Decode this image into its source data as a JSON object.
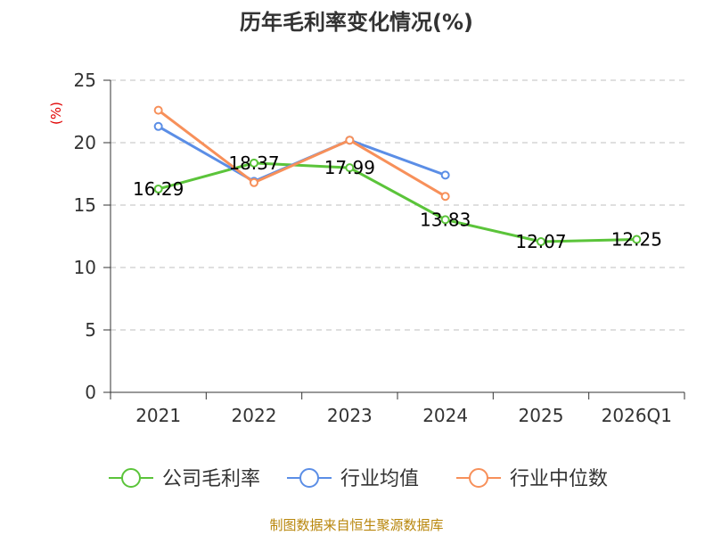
{
  "chart_data": {
    "type": "line",
    "title": "历年毛利率变化情况(%)",
    "ylabel": "(%)",
    "xlabel": "",
    "categories": [
      "2021",
      "2022",
      "2023",
      "2024",
      "2025",
      "2026Q1"
    ],
    "ylim": [
      0,
      25
    ],
    "yticks": [
      0,
      5,
      10,
      15,
      20,
      25
    ],
    "grid": true,
    "legend_position": "bottom",
    "series": [
      {
        "name": "公司毛利率",
        "color": "#5bc43a",
        "values": [
          16.29,
          18.37,
          17.99,
          13.83,
          12.07,
          12.25
        ],
        "labels": [
          "16.29",
          "18.37",
          "17.99",
          "13.83",
          "12.07",
          "12.25"
        ]
      },
      {
        "name": "行业均值",
        "color": "#5b8ee6",
        "values": [
          21.3,
          16.9,
          20.2,
          17.4,
          null,
          null
        ]
      },
      {
        "name": "行业中位数",
        "color": "#f7905a",
        "values": [
          22.6,
          16.8,
          20.2,
          15.7,
          null,
          null
        ]
      }
    ]
  },
  "source_text": "制图数据来自恒生聚源数据库"
}
